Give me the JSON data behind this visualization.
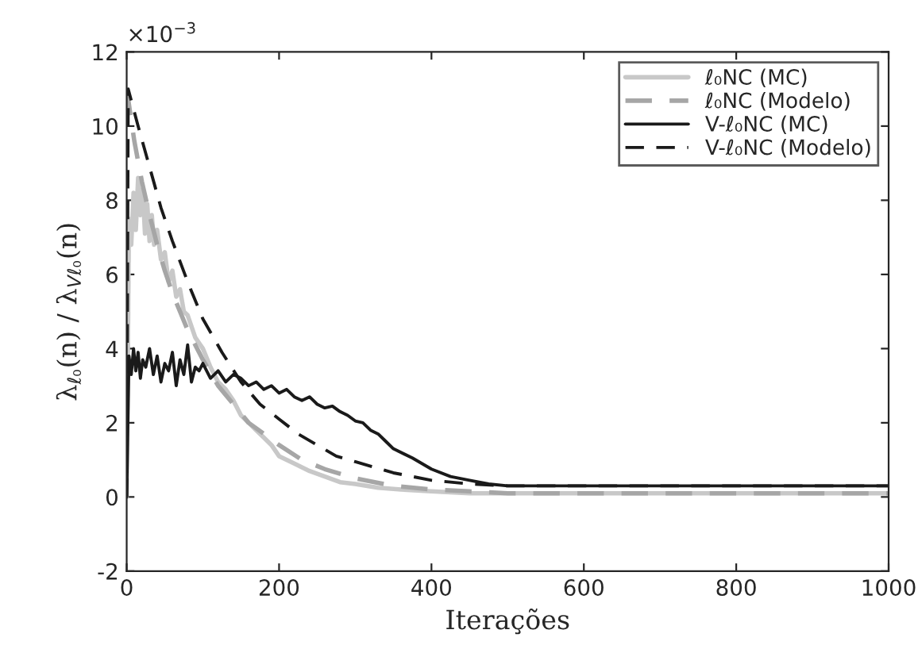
{
  "chart_data": {
    "type": "line",
    "xlabel": "Iterações",
    "ylabel": "λ$_{ℓ₀}$(n) / λ$_{Vℓ₀}$(n)",
    "annotations": [
      "×10$^{−3}$"
    ],
    "xlim": [
      0,
      1000
    ],
    "xticks": [
      0,
      200,
      400,
      600,
      800,
      1000
    ],
    "ylim": [
      -2,
      12
    ],
    "yticks": [
      -2,
      0,
      2,
      4,
      6,
      8,
      10,
      12
    ],
    "legend": "top right",
    "grid": false,
    "series": [
      {
        "name": "ℓ₀NC (MC)",
        "color": "#c8c8c8",
        "line_style": "solid",
        "x": [
          0,
          3,
          6,
          9,
          12,
          15,
          18,
          21,
          24,
          27,
          30,
          33,
          36,
          40,
          45,
          50,
          55,
          60,
          65,
          70,
          75,
          80,
          90,
          100,
          110,
          120,
          130,
          140,
          150,
          160,
          170,
          180,
          190,
          200,
          220,
          240,
          260,
          280,
          300,
          330,
          360,
          400,
          450,
          500,
          600,
          700,
          800,
          900,
          1000
        ],
        "values": [
          0,
          7.5,
          6.8,
          8.2,
          7.2,
          8.6,
          7.6,
          8.3,
          7.1,
          7.9,
          6.9,
          7.6,
          6.8,
          7.2,
          6.4,
          6.6,
          5.8,
          6.1,
          5.4,
          5.6,
          5.0,
          4.9,
          4.3,
          4.0,
          3.5,
          3.1,
          2.9,
          2.6,
          2.2,
          2.0,
          1.8,
          1.6,
          1.4,
          1.1,
          0.9,
          0.7,
          0.55,
          0.4,
          0.35,
          0.25,
          0.2,
          0.15,
          0.1,
          0.1,
          0.1,
          0.1,
          0.1,
          0.1,
          0.1
        ]
      },
      {
        "name": "ℓ₀NC (Modelo)",
        "color": "#a6a6a6",
        "line_style": "dashed",
        "x": [
          0,
          10,
          20,
          30,
          40,
          50,
          60,
          70,
          80,
          90,
          100,
          120,
          140,
          160,
          180,
          200,
          230,
          260,
          300,
          350,
          400,
          450,
          500,
          600,
          700,
          800,
          900,
          1000
        ],
        "values": [
          11,
          9.6,
          8.5,
          7.6,
          6.8,
          6.1,
          5.5,
          5.0,
          4.5,
          4.1,
          3.7,
          3.0,
          2.5,
          2.0,
          1.7,
          1.4,
          1.0,
          0.75,
          0.5,
          0.3,
          0.2,
          0.15,
          0.1,
          0.1,
          0.1,
          0.1,
          0.1,
          0.1
        ]
      },
      {
        "name": "V-ℓ₀NC (MC)",
        "color": "#1a1a1a",
        "line_style": "solid",
        "x": [
          0,
          3,
          6,
          9,
          12,
          15,
          18,
          21,
          25,
          30,
          35,
          40,
          45,
          50,
          55,
          60,
          65,
          70,
          75,
          80,
          85,
          90,
          95,
          100,
          110,
          120,
          130,
          140,
          150,
          160,
          170,
          180,
          190,
          200,
          210,
          220,
          230,
          240,
          250,
          260,
          270,
          280,
          290,
          300,
          310,
          320,
          330,
          340,
          350,
          375,
          400,
          425,
          450,
          475,
          500,
          550,
          600,
          650,
          700,
          750,
          800,
          850,
          900,
          950,
          1000
        ],
        "values": [
          0,
          3.8,
          3.3,
          4.0,
          3.4,
          3.9,
          3.2,
          3.7,
          3.5,
          4.0,
          3.3,
          3.8,
          3.1,
          3.6,
          3.4,
          3.9,
          3.0,
          3.7,
          3.3,
          4.1,
          3.1,
          3.5,
          3.4,
          3.6,
          3.2,
          3.4,
          3.1,
          3.3,
          3.2,
          3.0,
          3.1,
          2.9,
          3.0,
          2.8,
          2.9,
          2.7,
          2.6,
          2.7,
          2.5,
          2.4,
          2.45,
          2.3,
          2.2,
          2.05,
          2.0,
          1.8,
          1.7,
          1.5,
          1.3,
          1.05,
          0.75,
          0.55,
          0.45,
          0.35,
          0.3,
          0.3,
          0.3,
          0.3,
          0.3,
          0.3,
          0.3,
          0.3,
          0.3,
          0.3,
          0.3
        ]
      },
      {
        "name": "V-ℓ₀NC (Modelo)",
        "color": "#1a1a1a",
        "line_style": "dashed",
        "x": [
          0,
          2,
          15,
          30,
          45,
          60,
          80,
          100,
          125,
          150,
          175,
          200,
          225,
          250,
          275,
          300,
          350,
          400,
          450,
          500,
          600,
          700,
          800,
          900,
          1000
        ],
        "values": [
          0,
          11,
          10,
          8.9,
          7.8,
          6.9,
          5.8,
          4.8,
          3.9,
          3.1,
          2.5,
          2.1,
          1.7,
          1.4,
          1.1,
          0.95,
          0.65,
          0.45,
          0.35,
          0.3,
          0.3,
          0.3,
          0.3,
          0.3,
          0.3
        ]
      }
    ]
  }
}
